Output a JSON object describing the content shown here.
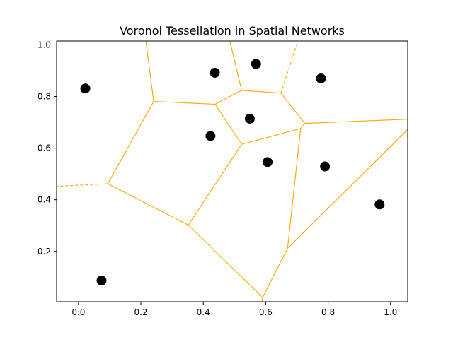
{
  "chart_data": {
    "type": "scatter",
    "title": "Voronoi Tessellation in Spatial Networks",
    "xlabel": "",
    "ylabel": "",
    "xlim": [
      -0.07,
      1.055
    ],
    "ylim": [
      0.005,
      1.015
    ],
    "x_ticks": [
      "0.0",
      "0.2",
      "0.4",
      "0.6",
      "0.8",
      "1.0"
    ],
    "y_ticks": [
      "0.2",
      "0.4",
      "0.6",
      "0.8",
      "1.0"
    ],
    "grid": false,
    "legend": "none",
    "point_color": "#000000",
    "edge_color": "#FFA500",
    "points": [
      {
        "x": 0.022,
        "y": 0.831
      },
      {
        "x": 0.074,
        "y": 0.087
      },
      {
        "x": 0.423,
        "y": 0.647
      },
      {
        "x": 0.437,
        "y": 0.892
      },
      {
        "x": 0.549,
        "y": 0.714
      },
      {
        "x": 0.569,
        "y": 0.926
      },
      {
        "x": 0.606,
        "y": 0.546
      },
      {
        "x": 0.777,
        "y": 0.87
      },
      {
        "x": 0.79,
        "y": 0.529
      },
      {
        "x": 0.965,
        "y": 0.382
      }
    ],
    "edges": [
      {
        "x1": 0.241,
        "y1": 0.781,
        "x2": 0.216,
        "y2": 1.015,
        "dashed": false
      },
      {
        "x1": 0.241,
        "y1": 0.781,
        "x2": 0.438,
        "y2": 0.77,
        "dashed": false
      },
      {
        "x1": 0.241,
        "y1": 0.781,
        "x2": 0.094,
        "y2": 0.462,
        "dashed": false
      },
      {
        "x1": 0.438,
        "y1": 0.77,
        "x2": 0.523,
        "y2": 0.824,
        "dashed": false
      },
      {
        "x1": 0.438,
        "y1": 0.77,
        "x2": 0.523,
        "y2": 0.615,
        "dashed": false
      },
      {
        "x1": 0.523,
        "y1": 0.824,
        "x2": 0.485,
        "y2": 1.015,
        "dashed": false
      },
      {
        "x1": 0.523,
        "y1": 0.824,
        "x2": 0.649,
        "y2": 0.813,
        "dashed": false
      },
      {
        "x1": 0.649,
        "y1": 0.813,
        "x2": 0.7,
        "y2": 1.005,
        "dashed": true
      },
      {
        "x1": 0.649,
        "y1": 0.813,
        "x2": 0.725,
        "y2": 0.696,
        "dashed": false
      },
      {
        "x1": 0.725,
        "y1": 0.696,
        "x2": 1.055,
        "y2": 0.712,
        "dashed": false
      },
      {
        "x1": 0.725,
        "y1": 0.696,
        "x2": 0.712,
        "y2": 0.676,
        "dashed": false
      },
      {
        "x1": 0.712,
        "y1": 0.676,
        "x2": 0.523,
        "y2": 0.615,
        "dashed": false
      },
      {
        "x1": 0.712,
        "y1": 0.676,
        "x2": 0.67,
        "y2": 0.212,
        "dashed": false
      },
      {
        "x1": 0.523,
        "y1": 0.615,
        "x2": 0.352,
        "y2": 0.302,
        "dashed": false
      },
      {
        "x1": 0.094,
        "y1": 0.462,
        "x2": 0.352,
        "y2": 0.302,
        "dashed": false
      },
      {
        "x1": 0.094,
        "y1": 0.462,
        "x2": -0.07,
        "y2": 0.452,
        "dashed": true
      },
      {
        "x1": 0.352,
        "y1": 0.302,
        "x2": 0.59,
        "y2": 0.022,
        "dashed": false
      },
      {
        "x1": 0.59,
        "y1": 0.022,
        "x2": 0.67,
        "y2": 0.212,
        "dashed": false
      },
      {
        "x1": 0.59,
        "y1": 0.022,
        "x2": 0.588,
        "y2": 0.005,
        "dashed": false
      },
      {
        "x1": 0.67,
        "y1": 0.212,
        "x2": 1.055,
        "y2": 0.672,
        "dashed": false
      }
    ]
  }
}
